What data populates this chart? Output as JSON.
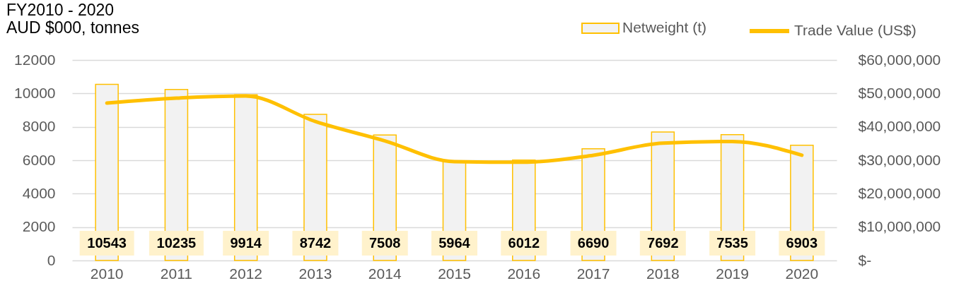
{
  "chart_data": {
    "type": "bar",
    "title": "FY2010 - 2020",
    "subtitle": "AUD $000, tonnes",
    "categories": [
      "2010",
      "2011",
      "2012",
      "2013",
      "2014",
      "2015",
      "2016",
      "2017",
      "2018",
      "2019",
      "2020"
    ],
    "series": [
      {
        "name": "Netweight (t)",
        "color": "#f2f2f2",
        "values": [
          10543,
          10235,
          9914,
          8742,
          7508,
          5964,
          6012,
          6690,
          7692,
          7535,
          6903
        ],
        "value_labels": [
          "10543",
          "10235",
          "9914",
          "8742",
          "7508",
          "5964",
          "6012",
          "6690",
          "7692",
          "7535",
          "6903"
        ]
      },
      {
        "name": "Trade Value (US$)",
        "type": "line",
        "axis": "y2",
        "color": "#ffc000",
        "values": [
          47100000,
          48600000,
          49200000,
          41600000,
          35800000,
          29600000,
          29400000,
          31500000,
          35100000,
          35600000,
          31500000
        ]
      }
    ],
    "ylim": [
      0,
      12000
    ],
    "yticks": [
      0,
      2000,
      4000,
      6000,
      8000,
      10000,
      12000
    ],
    "y2lim": [
      0,
      60000000
    ],
    "y2ticks": [
      {
        "value": 0,
        "label": "$-"
      },
      {
        "value": 10000000,
        "label": "$10,000,000"
      },
      {
        "value": 20000000,
        "label": "$20,000,000"
      },
      {
        "value": 30000000,
        "label": "$30,000,000"
      },
      {
        "value": 40000000,
        "label": "$40,000,000"
      },
      {
        "value": 50000000,
        "label": "$50,000,000"
      },
      {
        "value": 60000000,
        "label": "$60,000,000"
      }
    ],
    "grid": "y",
    "legend": "top right"
  }
}
